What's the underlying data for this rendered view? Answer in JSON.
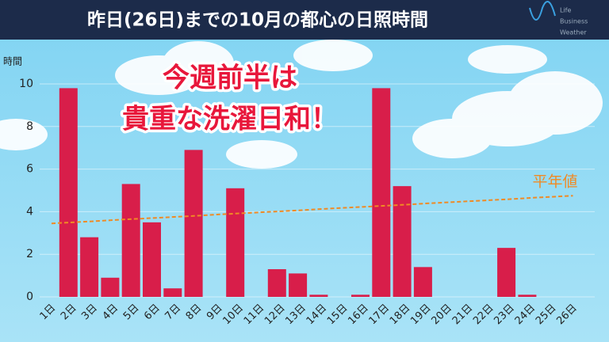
{
  "chart_data": {
    "type": "bar",
    "title": "昨日(26日)までの10月の都心の日照時間",
    "y_label": "時間",
    "annotation": [
      "今週前半は",
      "貴重な洗濯日和！"
    ],
    "logo": [
      "Life",
      "Business",
      "Weather"
    ],
    "categories": [
      "1日",
      "2日",
      "3日",
      "4日",
      "5日",
      "6日",
      "7日",
      "8日",
      "9日",
      "10日",
      "11日",
      "12日",
      "13日",
      "14日",
      "15日",
      "16日",
      "17日",
      "18日",
      "19日",
      "20日",
      "21日",
      "22日",
      "23日",
      "24日",
      "25日",
      "26日"
    ],
    "series": [
      {
        "name": "日照時間",
        "color": "#d81e4a",
        "values": [
          0,
          9.8,
          2.8,
          0.9,
          5.3,
          3.5,
          0.4,
          6.9,
          0,
          5.1,
          0,
          1.3,
          1.1,
          0.1,
          0,
          0.1,
          9.8,
          5.2,
          1.4,
          0,
          0,
          0,
          2.3,
          0.1,
          0,
          0
        ]
      },
      {
        "name": "平年値",
        "color": "#f08a24",
        "values": [
          3.45,
          3.5,
          3.55,
          3.61,
          3.66,
          3.71,
          3.76,
          3.81,
          3.87,
          3.92,
          3.97,
          4.02,
          4.07,
          4.13,
          4.18,
          4.23,
          4.28,
          4.33,
          4.39,
          4.44,
          4.49,
          4.54,
          4.59,
          4.65,
          4.7,
          4.75
        ]
      }
    ],
    "ylim": [
      0,
      10
    ],
    "yticks": [
      0,
      2,
      4,
      6,
      8,
      10
    ],
    "grid": true
  }
}
